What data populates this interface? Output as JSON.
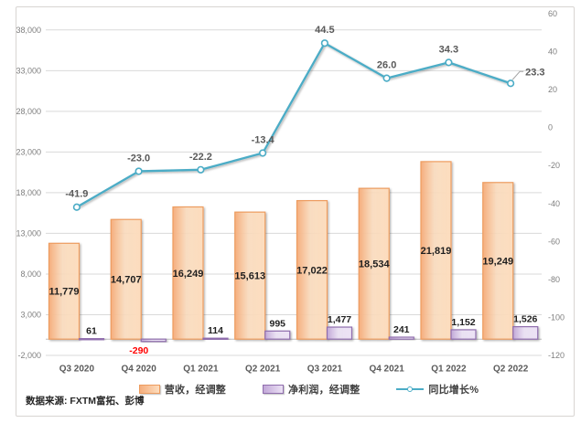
{
  "footer": {
    "source_label": "数据来源: FXTM富拓、彭博"
  },
  "chart_data": {
    "type": "combo-bar-line",
    "categories": [
      "Q3 2020",
      "Q4 2020",
      "Q1 2021",
      "Q2 2021",
      "Q3 2021",
      "Q4 2021",
      "Q1 2022",
      "Q2 2022"
    ],
    "series": [
      {
        "name": "营收，经调整",
        "type": "bar",
        "axis": "left",
        "values": [
          11779,
          14707,
          16249,
          15613,
          17022,
          18534,
          21819,
          19249
        ],
        "labels": [
          "11,779",
          "14,707",
          "16,249",
          "15,613",
          "17,022",
          "18,534",
          "21,819",
          "19,249"
        ]
      },
      {
        "name": "净利润，经调整",
        "type": "bar",
        "axis": "left",
        "values": [
          61,
          -290,
          114,
          995,
          1477,
          241,
          1152,
          1526
        ],
        "labels": [
          "61",
          "-290",
          "114",
          "995",
          "1,477",
          "241",
          "1,152",
          "1,526"
        ]
      },
      {
        "name": "同比增长%",
        "type": "line",
        "axis": "right",
        "values": [
          -41.9,
          -23.0,
          -22.2,
          -13.4,
          44.5,
          26.0,
          34.3,
          23.3
        ],
        "labels": [
          "-41.9",
          "-23.0",
          "-22.2",
          "-13.4",
          "44.5",
          "26.0",
          "34.3",
          "23.3"
        ]
      }
    ],
    "left_axis": {
      "ticks": [
        {
          "value": 38000,
          "label": "38,000"
        },
        {
          "value": 33000,
          "label": "33,000"
        },
        {
          "value": 28000,
          "label": "28,000"
        },
        {
          "value": 23000,
          "label": "23,000"
        },
        {
          "value": 18000,
          "label": "18,000"
        },
        {
          "value": 13000,
          "label": "13,000"
        },
        {
          "value": 8000,
          "label": "8,000"
        },
        {
          "value": 3000,
          "label": "3,000"
        },
        {
          "value": -2000,
          "label": "-2,000"
        }
      ]
    },
    "right_axis": {
      "ticks": [
        {
          "value": 60,
          "label": "60"
        },
        {
          "value": 40,
          "label": "40"
        },
        {
          "value": 20,
          "label": "20"
        },
        {
          "value": 0,
          "label": "0"
        },
        {
          "value": -20,
          "label": "-20"
        },
        {
          "value": -40,
          "label": "-40"
        },
        {
          "value": -60,
          "label": "-60"
        },
        {
          "value": -80,
          "label": "-80"
        },
        {
          "value": -100,
          "label": "-100"
        },
        {
          "value": -120,
          "label": "-120"
        }
      ]
    },
    "gridlines": true,
    "legend_position": "bottom",
    "colors": {
      "revenue_fill_start": "#F5AE7D",
      "revenue_fill_end": "#FDDDBE",
      "revenue_border": "#ED9C5F",
      "profit_fill_start": "#C2A8D8",
      "profit_fill_end": "#ECE2F5",
      "profit_border": "#8F6DAD",
      "line": "#4BACC6",
      "gridline": "#D9D9D9",
      "axis_line": "#BFBFBF",
      "tick_text": "#7F7F7F",
      "category_text": "#595959",
      "bar_label_text": "#1F1F1F",
      "line_label_text": "#595959",
      "negative_label": "#FF0000"
    }
  }
}
